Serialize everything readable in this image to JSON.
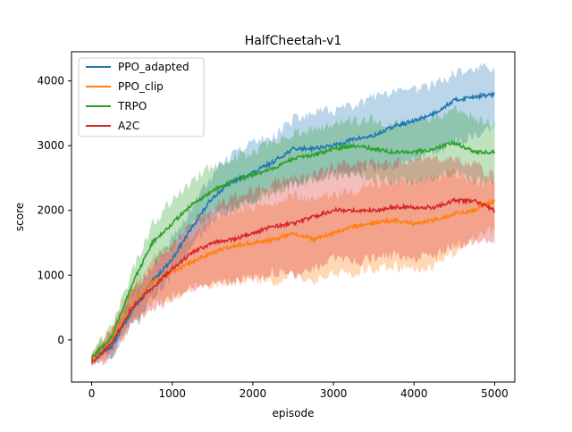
{
  "chart_data": {
    "type": "line",
    "title": "HalfCheetah-v1",
    "xlabel": "episode",
    "ylabel": "score",
    "xlim": [
      -250,
      5250
    ],
    "ylim": [
      -650,
      4450
    ],
    "xticks": [
      0,
      1000,
      2000,
      3000,
      4000,
      5000
    ],
    "yticks": [
      0,
      1000,
      2000,
      3000,
      4000
    ],
    "legend_position": "top-left",
    "series": [
      {
        "name": "PPO_adapted",
        "color": "#1f77b4",
        "x": [
          0,
          250,
          500,
          750,
          1000,
          1250,
          1500,
          1750,
          2000,
          2250,
          2500,
          2750,
          3000,
          3250,
          3500,
          3750,
          4000,
          4250,
          4500,
          4750,
          5000
        ],
        "mean": [
          -280,
          -100,
          450,
          900,
          1250,
          1750,
          2200,
          2450,
          2580,
          2750,
          2950,
          2960,
          3000,
          3100,
          3150,
          3300,
          3380,
          3500,
          3700,
          3760,
          3790
        ],
        "lower": [
          -340,
          -220,
          250,
          650,
          1000,
          1450,
          1850,
          2050,
          2150,
          2300,
          2400,
          2500,
          2550,
          2600,
          2650,
          2700,
          2800,
          2900,
          3050,
          3150,
          3300
        ],
        "upper": [
          -220,
          50,
          650,
          1150,
          1550,
          2050,
          2550,
          2850,
          3050,
          3150,
          3400,
          3500,
          3550,
          3600,
          3750,
          3800,
          3850,
          3950,
          4100,
          4200,
          4200
        ]
      },
      {
        "name": "PPO_clip",
        "color": "#ff7f0e",
        "x": [
          0,
          250,
          500,
          750,
          1000,
          1250,
          1500,
          1750,
          2000,
          2250,
          2500,
          2750,
          3000,
          3250,
          3500,
          3750,
          4000,
          4250,
          4500,
          4750,
          5000
        ],
        "mean": [
          -300,
          0,
          550,
          900,
          1050,
          1200,
          1350,
          1450,
          1500,
          1550,
          1650,
          1550,
          1650,
          1750,
          1800,
          1850,
          1800,
          1850,
          1950,
          2000,
          2150
        ],
        "lower": [
          -380,
          -200,
          300,
          550,
          650,
          800,
          850,
          900,
          950,
          900,
          1000,
          900,
          1000,
          1050,
          1100,
          1150,
          1050,
          1150,
          1350,
          1550,
          1700
        ],
        "upper": [
          -220,
          200,
          800,
          1250,
          1450,
          1600,
          1850,
          2000,
          2050,
          2100,
          2250,
          2150,
          2250,
          2300,
          2400,
          2450,
          2450,
          2500,
          2600,
          2400,
          2450
        ]
      },
      {
        "name": "TRPO",
        "color": "#2ca02c",
        "x": [
          0,
          250,
          500,
          750,
          1000,
          1250,
          1500,
          1750,
          2000,
          2250,
          2500,
          2750,
          3000,
          3250,
          3500,
          3750,
          4000,
          4250,
          4500,
          4750,
          5000
        ],
        "mean": [
          -270,
          50,
          850,
          1500,
          1800,
          2100,
          2300,
          2450,
          2550,
          2650,
          2800,
          2850,
          2950,
          3000,
          2950,
          2900,
          2900,
          2950,
          3050,
          2900,
          2900
        ],
        "lower": [
          -330,
          -100,
          600,
          1150,
          1450,
          1750,
          1950,
          2050,
          2150,
          2250,
          2400,
          2450,
          2550,
          2550,
          2500,
          2450,
          2450,
          2500,
          2600,
          2450,
          2450
        ],
        "upper": [
          -210,
          200,
          1050,
          1800,
          2150,
          2450,
          2700,
          2800,
          2900,
          3050,
          3200,
          3250,
          3350,
          3400,
          3400,
          3350,
          3350,
          3450,
          3550,
          3400,
          3350
        ]
      },
      {
        "name": "A2C",
        "color": "#d62728",
        "x": [
          0,
          250,
          500,
          750,
          1000,
          1250,
          1500,
          1750,
          2000,
          2250,
          2500,
          2750,
          3000,
          3250,
          3500,
          3750,
          4000,
          4250,
          4500,
          4750,
          5000
        ],
        "mean": [
          -350,
          -50,
          500,
          800,
          1100,
          1350,
          1500,
          1550,
          1650,
          1750,
          1800,
          1900,
          2000,
          2000,
          2000,
          2050,
          2050,
          2050,
          2150,
          2150,
          2000
        ],
        "lower": [
          -420,
          -250,
          250,
          450,
          650,
          800,
          900,
          900,
          950,
          1050,
          1000,
          1100,
          1250,
          1200,
          1250,
          1300,
          1250,
          1300,
          1450,
          1500,
          1500
        ],
        "upper": [
          -280,
          150,
          750,
          1150,
          1500,
          1850,
          2050,
          2200,
          2300,
          2450,
          2500,
          2550,
          2700,
          2700,
          2750,
          2750,
          2800,
          2800,
          2800,
          2700,
          2500
        ]
      }
    ]
  }
}
